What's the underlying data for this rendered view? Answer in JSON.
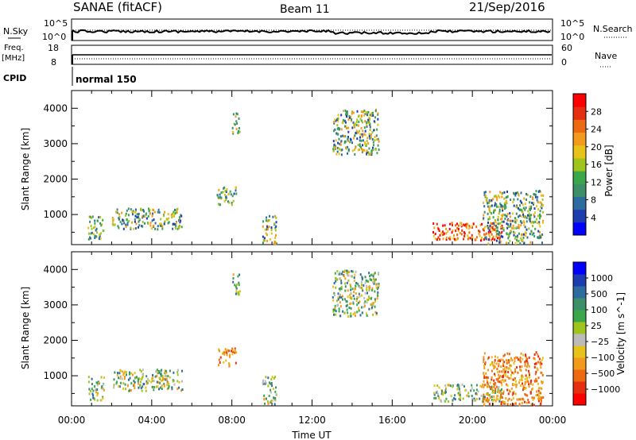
{
  "header": {
    "station": "SANAE (fitACF)",
    "beam": "Beam 11",
    "date": "21/Sep/2016"
  },
  "top_panels": {
    "nsky_label": "N.Sky",
    "nsky_top": "10^5",
    "nsky_bottom": "10^0",
    "nsearch_top": "10^5",
    "nsearch_bottom": "10^0",
    "nsearch_label": "N.Search",
    "freq_label": "Freq.",
    "freq_unit": "[MHz]",
    "freq_top": "18",
    "freq_bottom": "8",
    "nave_top": "60",
    "nave_bottom": "0",
    "nave_label": "Nave",
    "cpid_label": "CPID",
    "cpid_value": "normal 150"
  },
  "chart_data": [
    {
      "type": "scatter",
      "panel": "power",
      "xlabel": "Time UT",
      "ylabel": "Slant Range [km]",
      "xlim": [
        0,
        24
      ],
      "ylim": [
        150,
        4500
      ],
      "x_ticks": [
        "00:00",
        "04:00",
        "08:00",
        "12:00",
        "16:00",
        "20:00",
        "00:00"
      ],
      "y_ticks": [
        1000,
        2000,
        3000,
        4000
      ],
      "colorbar": {
        "label": "Power [dB]",
        "ticks": [
          "4",
          "8",
          "12",
          "16",
          "20",
          "24",
          "28"
        ],
        "colors": [
          "#0000ff",
          "#1c3cb0",
          "#2e6b9e",
          "#3d8f6a",
          "#3aa84a",
          "#9fc51c",
          "#e6c21a",
          "#f39a1c",
          "#ee6a12",
          "#e43010",
          "#ff0000"
        ]
      },
      "clusters": [
        {
          "t": [
            0.8,
            1.6
          ],
          "r": [
            300,
            1000
          ],
          "level": "low"
        },
        {
          "t": [
            2.0,
            5.5
          ],
          "r": [
            600,
            1200
          ],
          "level": "mid"
        },
        {
          "t": [
            7.2,
            8.2
          ],
          "r": [
            1300,
            1800
          ],
          "level": "mid"
        },
        {
          "t": [
            8.0,
            8.4
          ],
          "r": [
            3300,
            3900
          ],
          "level": "mid"
        },
        {
          "t": [
            9.5,
            10.2
          ],
          "r": [
            200,
            1000
          ],
          "level": "mid"
        },
        {
          "t": [
            18.0,
            21.5
          ],
          "r": [
            300,
            800
          ],
          "level": "high"
        },
        {
          "t": [
            20.5,
            23.5
          ],
          "r": [
            200,
            1700
          ],
          "level": "mid"
        },
        {
          "t": [
            13.0,
            15.3
          ],
          "r": [
            2700,
            4000
          ],
          "level": "mid"
        }
      ]
    },
    {
      "type": "scatter",
      "panel": "velocity",
      "xlabel": "Time UT",
      "ylabel": "Slant Range [km]",
      "xlim": [
        0,
        24
      ],
      "ylim": [
        150,
        4500
      ],
      "x_ticks": [
        "00:00",
        "04:00",
        "08:00",
        "12:00",
        "16:00",
        "20:00",
        "00:00"
      ],
      "y_ticks": [
        1000,
        2000,
        3000,
        4000
      ],
      "colorbar": {
        "label": "Velocity [m s^-1]",
        "ticks": [
          "1000",
          "500",
          "100",
          "25",
          "−25",
          "−100",
          "−500",
          "−1000"
        ],
        "colors": [
          "#0000ff",
          "#1c3cb0",
          "#2e6b9e",
          "#3d8f6a",
          "#3aa84a",
          "#9fc51c",
          "#bbbbbb",
          "#e6c21a",
          "#f39a1c",
          "#ee6a12",
          "#e43010",
          "#ff0000"
        ]
      },
      "clusters": [
        {
          "t": [
            0.8,
            1.6
          ],
          "r": [
            300,
            1000
          ],
          "level": "mix"
        },
        {
          "t": [
            2.0,
            5.5
          ],
          "r": [
            600,
            1200
          ],
          "level": "mix"
        },
        {
          "t": [
            7.2,
            8.2
          ],
          "r": [
            1300,
            1800
          ],
          "level": "neg"
        },
        {
          "t": [
            8.0,
            8.4
          ],
          "r": [
            3300,
            3900
          ],
          "level": "mix"
        },
        {
          "t": [
            9.5,
            10.2
          ],
          "r": [
            200,
            1000
          ],
          "level": "mix"
        },
        {
          "t": [
            18.0,
            21.5
          ],
          "r": [
            300,
            800
          ],
          "level": "mix"
        },
        {
          "t": [
            20.5,
            23.5
          ],
          "r": [
            200,
            1700
          ],
          "level": "neg"
        },
        {
          "t": [
            13.0,
            15.3
          ],
          "r": [
            2700,
            4000
          ],
          "level": "mix"
        }
      ]
    }
  ]
}
